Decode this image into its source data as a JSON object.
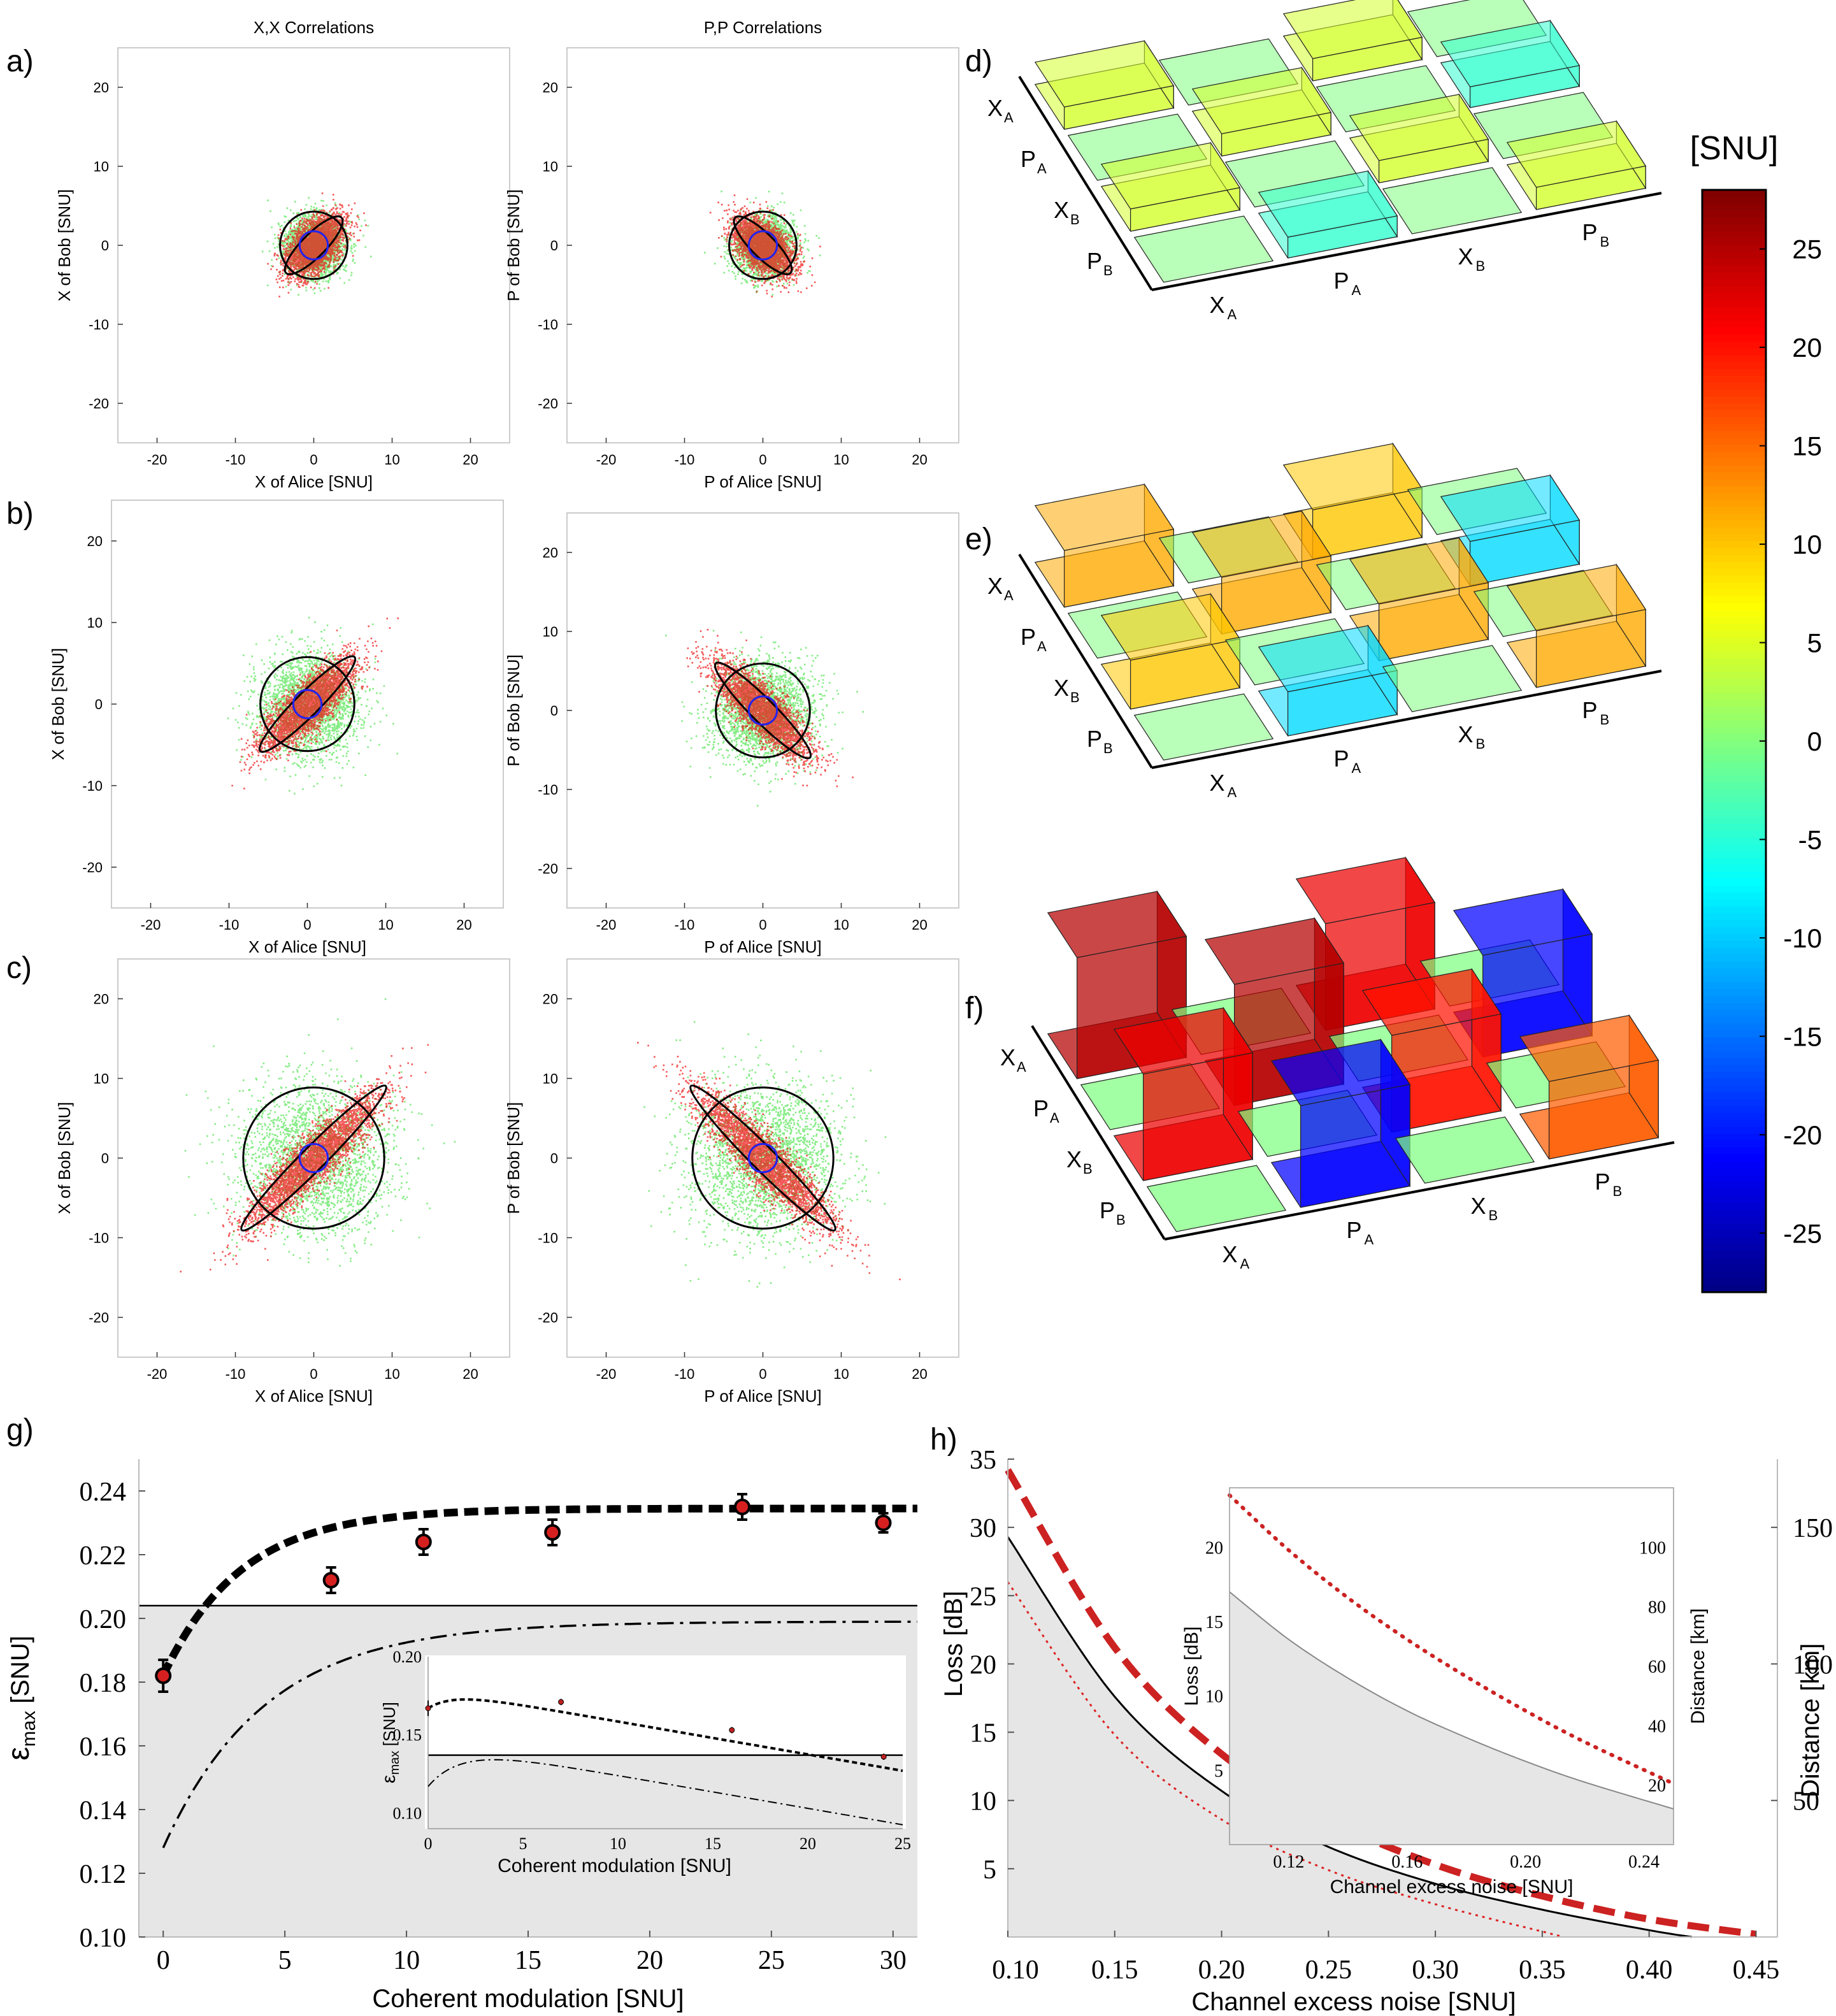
{
  "panel_labels": [
    "a)",
    "b)",
    "c)",
    "d)",
    "e)",
    "f)",
    "g)",
    "h)"
  ],
  "colorbar": {
    "title": "[SNU]",
    "min": -28,
    "max": 28,
    "ticks": [
      25,
      20,
      15,
      10,
      5,
      0,
      -5,
      -10,
      -15,
      -20,
      -25
    ],
    "tick_labels": [
      "25",
      "20",
      "15",
      "10",
      "5",
      "0",
      "-5",
      "-10",
      "-15",
      "-20",
      "-25"
    ],
    "colormap": "jet"
  },
  "scatter_common": {
    "xlim": [
      -25,
      25
    ],
    "ylim": [
      -25,
      25
    ],
    "ticks": [
      -20,
      -10,
      0,
      10,
      20
    ],
    "tick_labels": [
      "-20",
      "-10",
      "0",
      "10",
      "20"
    ]
  },
  "chart_data": [
    {
      "id": "a-xx",
      "type": "scatter",
      "title": "X,X Correlations",
      "xlabel": "X of Alice [SNU]",
      "ylabel": "X of Bob [SNU]",
      "correlation": 1,
      "modulation_variance": 3.6,
      "ellipse_half_length": 5.0,
      "circle_radius": 4.3,
      "inner_circle_radius": 1.8
    },
    {
      "id": "a-pp",
      "type": "scatter",
      "title": "P,P Correlations",
      "xlabel": "P of Alice [SNU]",
      "ylabel": "P of Bob [SNU]",
      "correlation": -1,
      "modulation_variance": 3.6,
      "ellipse_half_length": 5.0,
      "circle_radius": 4.3,
      "inner_circle_radius": 1.8
    },
    {
      "id": "b-xx",
      "type": "scatter",
      "title": "",
      "xlabel": "X of Alice [SNU]",
      "ylabel": "X of Bob [SNU]",
      "correlation": 1,
      "modulation_variance": 10.7,
      "ellipse_half_length": 8.5,
      "circle_radius": 6.0,
      "inner_circle_radius": 1.8
    },
    {
      "id": "b-pp",
      "type": "scatter",
      "title": "",
      "xlabel": "P of Alice [SNU]",
      "ylabel": "P of Bob [SNU]",
      "correlation": -1,
      "modulation_variance": 10.7,
      "ellipse_half_length": 8.5,
      "circle_radius": 6.0,
      "inner_circle_radius": 1.8
    },
    {
      "id": "c-xx",
      "type": "scatter",
      "title": "",
      "xlabel": "X of Alice [SNU]",
      "ylabel": "X of Bob [SNU]",
      "correlation": 1,
      "modulation_variance": 24.0,
      "ellipse_half_length": 13.0,
      "circle_radius": 9.0,
      "inner_circle_radius": 1.8
    },
    {
      "id": "c-pp",
      "type": "scatter",
      "title": "",
      "xlabel": "P of Alice [SNU]",
      "ylabel": "P of Bob [SNU]",
      "correlation": -1,
      "modulation_variance": 24.0,
      "ellipse_half_length": 13.0,
      "circle_radius": 9.0,
      "inner_circle_radius": 1.8
    },
    {
      "id": "d",
      "type": "bar3d",
      "labels": [
        "XA",
        "PA",
        "XB",
        "PB"
      ],
      "values": [
        [
          4.6,
          0,
          4.6,
          0
        ],
        [
          0,
          4.6,
          0,
          -4.3
        ],
        [
          4.6,
          0,
          4.6,
          0
        ],
        [
          0,
          -4.3,
          0,
          4.6
        ]
      ]
    },
    {
      "id": "e",
      "type": "bar3d",
      "labels": [
        "XA",
        "PA",
        "XB",
        "PB"
      ],
      "values": [
        [
          11.7,
          0,
          10.1,
          0
        ],
        [
          0,
          11.7,
          0,
          -9.1
        ],
        [
          10.1,
          0,
          11.7,
          0
        ],
        [
          0,
          -9.1,
          0,
          11.7
        ]
      ]
    },
    {
      "id": "f",
      "type": "bar3d",
      "labels": [
        "XA",
        "PA",
        "XB",
        "PB"
      ],
      "values": [
        [
          25.0,
          0,
          22.0,
          0
        ],
        [
          0,
          25.0,
          0,
          -21.0
        ],
        [
          22.0,
          0,
          20.0,
          0
        ],
        [
          0,
          -21.0,
          0,
          16.0
        ]
      ]
    },
    {
      "id": "g",
      "type": "line",
      "xlabel": "Coherent modulation [SNU]",
      "ylabel_main": "ε",
      "ylabel_sub": "max",
      "ylabel_unit": "[SNU]",
      "xlim": [
        -1,
        31
      ],
      "ylim": [
        0.1,
        0.25
      ],
      "xticks": [
        0,
        5,
        10,
        15,
        20,
        25,
        30
      ],
      "xtick_labels": [
        "0",
        "5",
        "10",
        "15",
        "20",
        "25",
        "30"
      ],
      "yticks": [
        0.1,
        0.12,
        0.14,
        0.16,
        0.18,
        0.2,
        0.22,
        0.24
      ],
      "ytick_labels": [
        "0.10",
        "0.12",
        "0.14",
        "0.16",
        "0.18",
        "0.20",
        "0.22",
        "0.24"
      ],
      "threshold": 0.204,
      "theory_dashed": {
        "asymptote": 0.2345,
        "start": 0.182,
        "scale": 3.2
      },
      "theory_dashdot": {
        "asymptote": 0.199,
        "start": 0.128,
        "scale": 4.2
      },
      "points": [
        {
          "x": 0,
          "y": 0.182,
          "err": 0.005
        },
        {
          "x": 6.9,
          "y": 0.212,
          "err": 0.004
        },
        {
          "x": 10.7,
          "y": 0.224,
          "err": 0.004
        },
        {
          "x": 16.0,
          "y": 0.227,
          "err": 0.004
        },
        {
          "x": 23.8,
          "y": 0.235,
          "err": 0.004
        },
        {
          "x": 29.6,
          "y": 0.23,
          "err": 0.003
        }
      ],
      "inset": {
        "xlabel": "Coherent modulation [SNU]",
        "ylabel_main": "ε",
        "ylabel_sub": "max",
        "ylabel_unit": "[SNU]",
        "xlim": [
          0,
          25
        ],
        "ylim": [
          0.09,
          0.2
        ],
        "xticks": [
          0,
          5,
          10,
          15,
          20,
          25
        ],
        "xtick_labels": [
          "0",
          "5",
          "10",
          "15",
          "20",
          "25"
        ],
        "yticks": [
          0.1,
          0.15,
          0.2
        ],
        "ytick_labels": [
          "0.10",
          "0.15",
          "0.20"
        ],
        "threshold": 0.137,
        "points": [
          {
            "x": 0,
            "y": 0.167,
            "err": 0.005
          },
          {
            "x": 7.0,
            "y": 0.171,
            "err": 0.002
          },
          {
            "x": 16.0,
            "y": 0.153,
            "err": 0.002
          },
          {
            "x": 24.0,
            "y": 0.136,
            "err": 0.002
          }
        ]
      }
    },
    {
      "id": "h",
      "type": "line",
      "xlabel": "Channel excess noise [SNU]",
      "ylabel": "Loss [dB]",
      "ylabel_right": "Distance [km]",
      "xlim": [
        0.1,
        0.46
      ],
      "ylim": [
        0,
        35
      ],
      "xticks": [
        0.1,
        0.15,
        0.2,
        0.25,
        0.3,
        0.35,
        0.4,
        0.45
      ],
      "xtick_labels": [
        "0.10",
        "0.15",
        "0.20",
        "0.25",
        "0.30",
        "0.35",
        "0.40",
        "0.45"
      ],
      "yticks": [
        5,
        10,
        15,
        20,
        25,
        30,
        35
      ],
      "ytick_labels": [
        "5",
        "10",
        "15",
        "20",
        "25",
        "30",
        "35"
      ],
      "right_ticks": [
        50,
        100,
        150
      ],
      "right_tick_labels": [
        "50",
        "100",
        "150"
      ],
      "km_per_db": 5,
      "curves": {
        "solid": [
          [
            0.1,
            29.3
          ],
          [
            0.15,
            17.6
          ],
          [
            0.2,
            10.7
          ],
          [
            0.25,
            6.6
          ],
          [
            0.3,
            3.9
          ],
          [
            0.35,
            2.0
          ],
          [
            0.4,
            0.5
          ],
          [
            0.42,
            0.0
          ]
        ],
        "thick_dashed": [
          [
            0.1,
            34.2
          ],
          [
            0.15,
            21.2
          ],
          [
            0.2,
            13.4
          ],
          [
            0.25,
            8.6
          ],
          [
            0.3,
            5.3
          ],
          [
            0.35,
            3.0
          ],
          [
            0.4,
            1.3
          ],
          [
            0.45,
            0.2
          ]
        ],
        "dotted": [
          [
            0.1,
            26.0
          ],
          [
            0.15,
            14.8
          ],
          [
            0.2,
            8.6
          ],
          [
            0.25,
            4.9
          ],
          [
            0.3,
            2.4
          ],
          [
            0.35,
            0.4
          ],
          [
            0.36,
            0.0
          ]
        ]
      },
      "inset": {
        "xlabel": "Channel excess noise [SNU]",
        "ylabel": "Loss [dB]",
        "ylabel_right": "Distance [km]",
        "xlim": [
          0.1,
          0.25
        ],
        "ylim": [
          0,
          24
        ],
        "xticks": [
          0.12,
          0.16,
          0.2,
          0.24
        ],
        "xtick_labels": [
          "0.12",
          "0.16",
          "0.20",
          "0.24"
        ],
        "yticks": [
          5,
          10,
          15,
          20
        ],
        "ytick_labels": [
          "5",
          "10",
          "15",
          "20"
        ],
        "right_ticks": [
          20,
          40,
          60,
          80,
          100
        ],
        "right_tick_labels": [
          "20",
          "40",
          "60",
          "80",
          "100"
        ],
        "km_per_db": 5,
        "curves": {
          "solid": [
            [
              0.1,
              17.0
            ],
            [
              0.12,
              13.8
            ],
            [
              0.14,
              11.2
            ],
            [
              0.16,
              9.0
            ],
            [
              0.18,
              7.2
            ],
            [
              0.2,
              5.6
            ],
            [
              0.22,
              4.2
            ],
            [
              0.25,
              2.4
            ]
          ],
          "dotted": [
            [
              0.1,
              23.5
            ],
            [
              0.12,
              19.8
            ],
            [
              0.14,
              16.6
            ],
            [
              0.16,
              13.8
            ],
            [
              0.18,
              11.3
            ],
            [
              0.2,
              9.0
            ],
            [
              0.22,
              6.9
            ],
            [
              0.25,
              4.1
            ]
          ]
        }
      }
    }
  ]
}
